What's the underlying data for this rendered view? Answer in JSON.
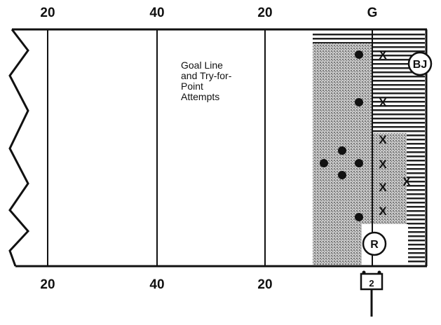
{
  "yard_lines_top": [
    "20",
    "40",
    "20",
    "G"
  ],
  "yard_lines_bottom": [
    "20",
    "40",
    "20"
  ],
  "caption": [
    "Goal Line",
    "and Try-for-",
    "Point",
    "Attempts"
  ],
  "officials": {
    "back_judge": "BJ",
    "referee": "R",
    "chain_marker": "2"
  },
  "markers": {
    "defense_symbol": "X",
    "offense_symbol": "dot"
  },
  "colors": {
    "field_line": "#111111",
    "shaded_zone": "#9a9a9a",
    "end_zone_stripes": "#222222"
  }
}
